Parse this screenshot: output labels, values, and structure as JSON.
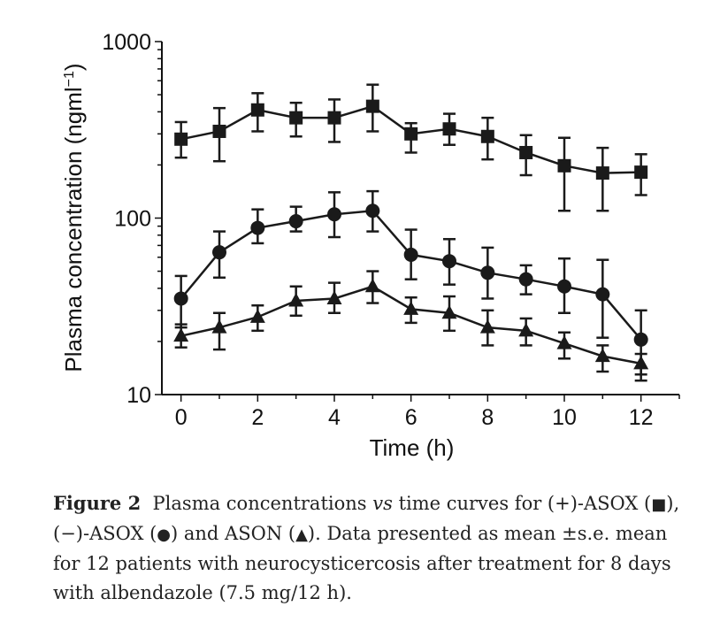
{
  "chart_data": {
    "type": "line",
    "xlabel": "Time (h)",
    "ylabel": "Plasma concentration (ngml",
    "ylabel_sup": "−1",
    "ylabel_close": ")",
    "ylim": [
      10,
      1000
    ],
    "yscale": "log",
    "xlim": [
      -0.5,
      13
    ],
    "xticks": [
      0,
      2,
      4,
      6,
      8,
      10,
      12
    ],
    "xtick_labels": [
      "0",
      "2",
      "4",
      "6",
      "8",
      "10",
      "12"
    ],
    "yticks": [
      10,
      100,
      1000
    ],
    "ytick_labels": [
      "10",
      "100",
      "1000"
    ],
    "grid": false,
    "x": [
      0,
      1,
      2,
      3,
      4,
      5,
      6,
      7,
      8,
      9,
      10,
      11,
      12
    ],
    "series": [
      {
        "marker": "square",
        "values": [
          280,
          310,
          410,
          370,
          370,
          430,
          300,
          320,
          290,
          235,
          198,
          180,
          182
        ],
        "err_upper": [
          350,
          420,
          510,
          450,
          470,
          570,
          345,
          390,
          370,
          295,
          285,
          250,
          230
        ],
        "err_lower": [
          220,
          210,
          310,
          290,
          270,
          310,
          235,
          260,
          215,
          175,
          110,
          110,
          135
        ],
        "color": "#1a1a1a"
      },
      {
        "marker": "circle",
        "values": [
          35,
          64,
          88,
          96,
          105,
          110,
          62,
          57,
          49,
          45,
          41,
          37,
          20.5
        ],
        "err_upper": [
          47,
          84,
          112,
          116,
          140,
          142,
          86,
          76,
          68,
          54,
          59,
          58,
          30
        ],
        "err_lower": [
          24,
          46,
          72,
          84,
          78,
          84,
          45,
          42,
          35,
          37,
          29,
          21,
          12
        ],
        "color": "#1a1a1a"
      },
      {
        "marker": "triangle",
        "values": [
          21.5,
          24,
          27.5,
          34,
          35,
          41,
          30.5,
          29,
          24,
          23,
          19.5,
          16.5,
          15
        ],
        "err_upper": [
          25,
          29,
          32,
          41,
          43,
          50,
          35.5,
          36,
          30,
          27,
          22.5,
          19,
          17
        ],
        "err_lower": [
          18.5,
          18,
          23,
          28,
          29,
          33,
          25.5,
          23,
          19,
          19,
          16,
          13.5,
          13
        ],
        "color": "#1a1a1a"
      }
    ]
  },
  "caption": {
    "figure_label": "Figure 2",
    "text_1": "Plasma concentrations",
    "text_vs": "vs",
    "text_2": "time curves for (+)-ASOX (",
    "sym_square": "■",
    "text_3": "), (−)-ASOX (",
    "sym_circle": "●",
    "text_4": ") and ASON (",
    "sym_triangle": "▲",
    "text_5": "). Data presented as mean ±s.e. mean for 12 patients with neurocysticercosis after treatment for 8 days with albendazole (7.5 mg/12 h)."
  }
}
